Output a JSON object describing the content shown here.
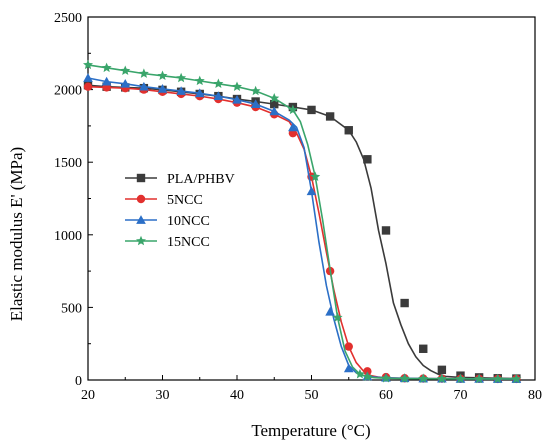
{
  "chart_data": {
    "type": "line",
    "title": "",
    "xlabel": "Temperature (°C)",
    "ylabel": "Elastic modulus E' (MPa)",
    "xlim": [
      20,
      80
    ],
    "ylim": [
      0,
      2500
    ],
    "x_ticks": [
      "20",
      "30",
      "40",
      "50",
      "60",
      "70",
      "80"
    ],
    "y_ticks": [
      "0",
      "500",
      "1000",
      "1500",
      "2000",
      "2500"
    ],
    "grid": false,
    "legend_position": "center-left",
    "series": [
      {
        "name": "PLA/PHBV",
        "color": "#3b3b3b",
        "marker": "square",
        "x": [
          20,
          22.5,
          25,
          27.5,
          30,
          32.5,
          35,
          37.5,
          40,
          42.5,
          45,
          47.5,
          50,
          52.5,
          55,
          56,
          57,
          58,
          59,
          60,
          61,
          62,
          63,
          64,
          65,
          66,
          67,
          68,
          70,
          72.5,
          75,
          77.5
        ],
        "y": [
          2030,
          2020,
          2015,
          2010,
          1998,
          1985,
          1970,
          1955,
          1935,
          1918,
          1900,
          1880,
          1860,
          1815,
          1720,
          1640,
          1520,
          1320,
          1030,
          800,
          530,
          380,
          250,
          160,
          100,
          65,
          40,
          25,
          18,
          15,
          12,
          10
        ],
        "marker_x": [
          20,
          22.5,
          25,
          27.5,
          30,
          32.5,
          35,
          37.5,
          40,
          42.5,
          45,
          47.5,
          50,
          52.5,
          55,
          57.5,
          60,
          62.5,
          65,
          67.5,
          70,
          72.5,
          75,
          77.5
        ],
        "marker_y": [
          2030,
          2020,
          2015,
          2010,
          1998,
          1985,
          1970,
          1955,
          1935,
          1918,
          1900,
          1880,
          1860,
          1815,
          1720,
          1520,
          1030,
          530,
          215,
          70,
          30,
          18,
          12,
          10
        ]
      },
      {
        "name": "5NCC",
        "color": "#e2302e",
        "marker": "circle",
        "x": [
          20,
          22.5,
          25,
          27.5,
          30,
          32.5,
          35,
          37.5,
          40,
          42.5,
          45,
          47,
          48,
          49,
          50,
          51,
          52,
          53,
          54,
          55,
          56,
          57,
          58,
          59,
          60,
          62.5,
          65,
          67.5,
          70,
          72.5,
          75,
          77.5
        ],
        "y": [
          2020,
          2015,
          2010,
          2000,
          1985,
          1970,
          1955,
          1935,
          1910,
          1880,
          1830,
          1780,
          1700,
          1590,
          1400,
          1150,
          880,
          620,
          400,
          230,
          120,
          60,
          30,
          20,
          15,
          12,
          10,
          9,
          8,
          8,
          7,
          7
        ],
        "marker_x": [
          20,
          22.5,
          25,
          27.5,
          30,
          32.5,
          35,
          37.5,
          40,
          42.5,
          45,
          47.5,
          50,
          52.5,
          55,
          57.5,
          60,
          62.5,
          65,
          67.5,
          70,
          72.5,
          75,
          77.5
        ],
        "marker_y": [
          2020,
          2015,
          2010,
          2000,
          1985,
          1970,
          1955,
          1935,
          1910,
          1880,
          1830,
          1700,
          1400,
          750,
          230,
          60,
          20,
          12,
          10,
          9,
          8,
          8,
          7,
          7
        ]
      },
      {
        "name": "10NCC",
        "color": "#2b6fc7",
        "marker": "triangle",
        "x": [
          20,
          22.5,
          25,
          27.5,
          30,
          32.5,
          35,
          37.5,
          40,
          42.5,
          45,
          47,
          48,
          49,
          50,
          51,
          52,
          53,
          54,
          55,
          56,
          57,
          58,
          60,
          62.5,
          65,
          67.5,
          70,
          72.5,
          75,
          77.5
        ],
        "y": [
          2080,
          2055,
          2040,
          2020,
          2005,
          1990,
          1975,
          1955,
          1930,
          1900,
          1850,
          1790,
          1740,
          1600,
          1300,
          950,
          650,
          420,
          230,
          100,
          50,
          30,
          22,
          15,
          12,
          10,
          9,
          8,
          8,
          7,
          7
        ],
        "marker_x": [
          20,
          22.5,
          25,
          27.5,
          30,
          32.5,
          35,
          37.5,
          40,
          42.5,
          45,
          47.5,
          50,
          52.5,
          55,
          57.5,
          60,
          62.5,
          65,
          67.5,
          70,
          72.5,
          75,
          77.5
        ],
        "marker_y": [
          2080,
          2055,
          2040,
          2020,
          2005,
          1990,
          1975,
          1955,
          1930,
          1900,
          1850,
          1740,
          1300,
          470,
          80,
          25,
          15,
          12,
          10,
          9,
          8,
          8,
          7,
          7
        ]
      },
      {
        "name": "15NCC",
        "color": "#3aa56b",
        "marker": "star",
        "x": [
          20,
          22.5,
          25,
          27.5,
          30,
          32.5,
          35,
          37.5,
          40,
          42.5,
          45,
          47.5,
          48.5,
          49.5,
          50.5,
          51.5,
          52.5,
          53.5,
          54.5,
          55.5,
          56.5,
          57.5,
          58.5,
          60,
          62.5,
          65,
          67.5,
          70,
          72.5,
          75,
          77.5
        ],
        "y": [
          2170,
          2150,
          2130,
          2110,
          2095,
          2080,
          2060,
          2040,
          2020,
          1990,
          1940,
          1860,
          1780,
          1620,
          1400,
          1100,
          760,
          430,
          200,
          90,
          40,
          22,
          16,
          12,
          10,
          9,
          8,
          8,
          7,
          7,
          7
        ],
        "marker_x": [
          20,
          22.5,
          25,
          27.5,
          30,
          32.5,
          35,
          37.5,
          40,
          42.5,
          45,
          47.5,
          50.5,
          53.5,
          56.5,
          57.5,
          60,
          62.5,
          65,
          67.5,
          70,
          72.5,
          75,
          77.5
        ],
        "marker_y": [
          2170,
          2150,
          2130,
          2110,
          2095,
          2080,
          2060,
          2040,
          2020,
          1990,
          1940,
          1860,
          1400,
          430,
          40,
          22,
          12,
          10,
          9,
          8,
          8,
          7,
          7,
          7
        ]
      }
    ]
  }
}
